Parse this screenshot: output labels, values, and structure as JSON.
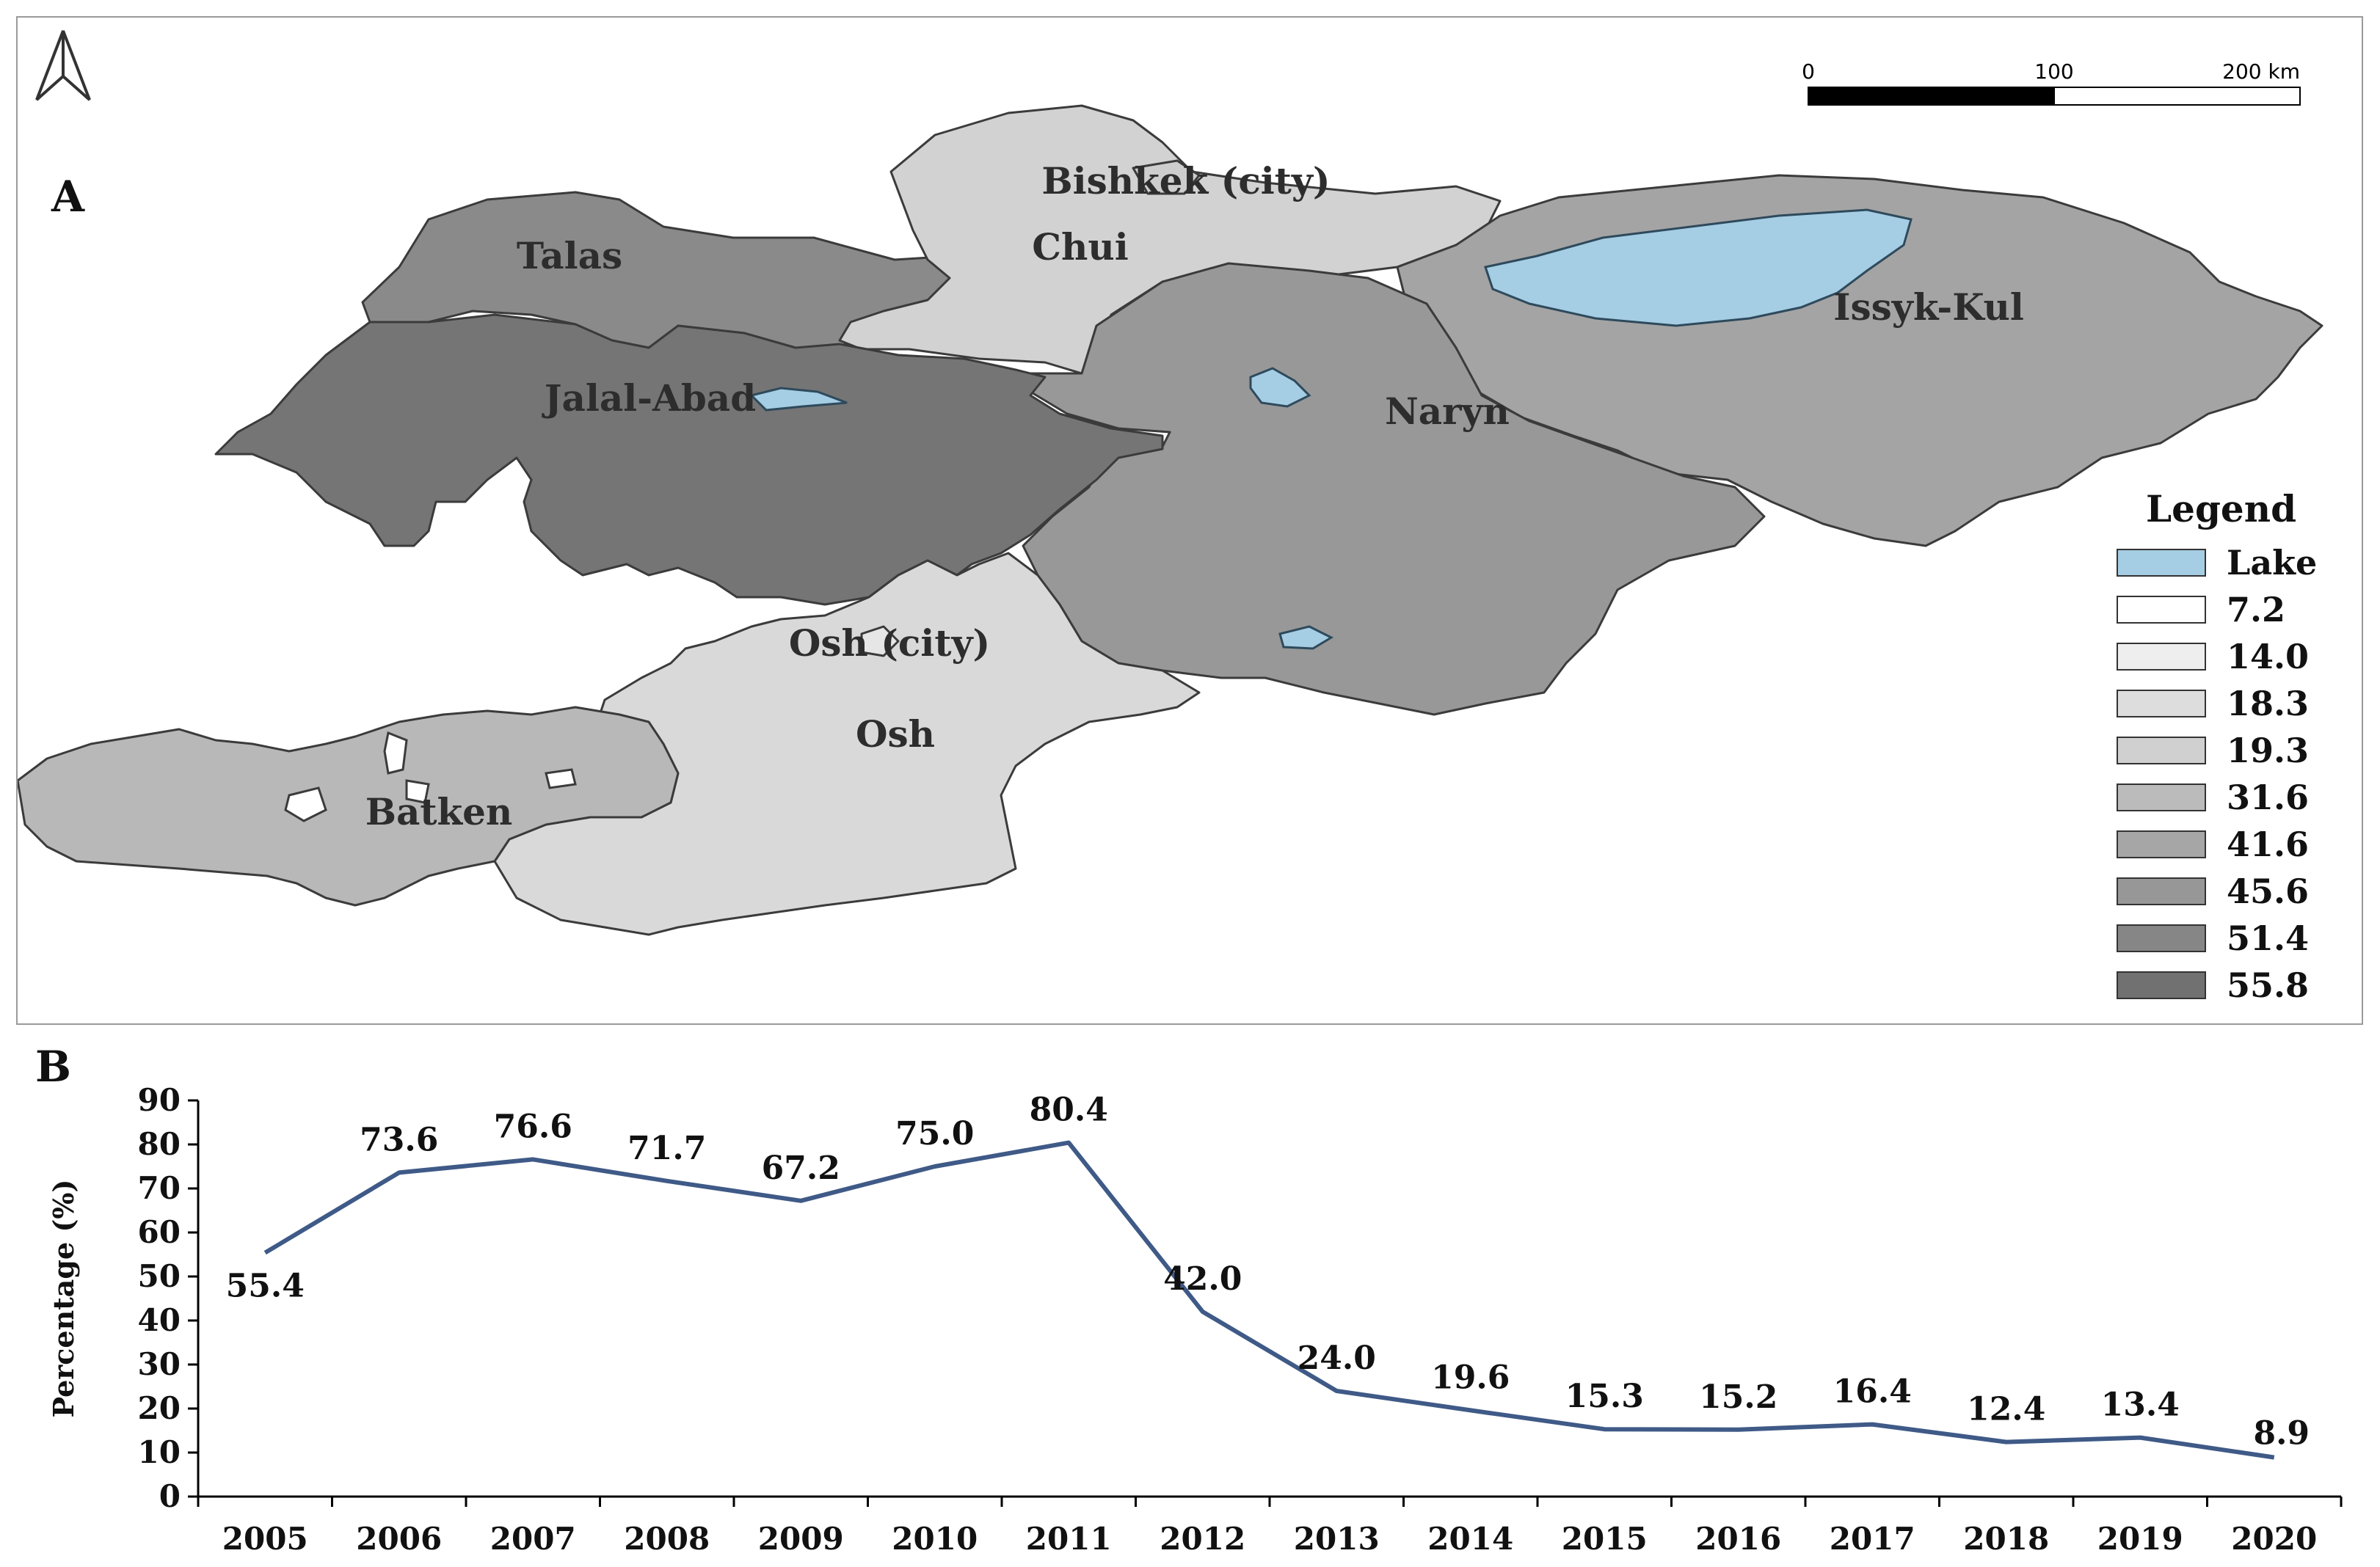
{
  "panel_a": {
    "letter": "A",
    "scale_bar": {
      "labels": [
        "0",
        "100",
        "200 km"
      ]
    },
    "north_arrow_icon": "north-arrow-icon",
    "regions": [
      {
        "name": "Talas",
        "value": "51.4",
        "color": "#8a8a8a"
      },
      {
        "name": "Chui",
        "value": "18.3",
        "color": "#d2d2d2"
      },
      {
        "name": "Bishkek (city)",
        "value": "19.3",
        "color": "#cdcdcd"
      },
      {
        "name": "Issyk-Kul",
        "value": "41.6",
        "color": "#a4a4a4"
      },
      {
        "name": "Naryn",
        "value": "45.6",
        "color": "#989898"
      },
      {
        "name": "Jalal-Abad",
        "value": "55.8",
        "color": "#757575"
      },
      {
        "name": "Osh (city)",
        "value": "14.0",
        "color": "#e6e6e6"
      },
      {
        "name": "Osh",
        "value": "18.3",
        "color": "#d9d9d9"
      },
      {
        "name": "Batken",
        "value": "31.6",
        "color": "#b8b8b8"
      }
    ],
    "legend": {
      "title": "Legend",
      "items": [
        {
          "label": "Lake",
          "color": "#a5cde3"
        },
        {
          "label": "7.2",
          "color": "#ffffff"
        },
        {
          "label": "14.0",
          "color": "#eeeeee"
        },
        {
          "label": "18.3",
          "color": "#dddddd"
        },
        {
          "label": "19.3",
          "color": "#d0d0d0"
        },
        {
          "label": "31.6",
          "color": "#bbbbbb"
        },
        {
          "label": "41.6",
          "color": "#a6a6a6"
        },
        {
          "label": "45.6",
          "color": "#979797"
        },
        {
          "label": "51.4",
          "color": "#868686"
        },
        {
          "label": "55.8",
          "color": "#717171"
        }
      ]
    }
  },
  "panel_b": {
    "letter": "B"
  },
  "chart_data": {
    "type": "line",
    "title": "",
    "xlabel": "",
    "ylabel": "Percentage (%)",
    "categories": [
      "2005",
      "2006",
      "2007",
      "2008",
      "2009",
      "2010",
      "2011",
      "2012",
      "2013",
      "2014",
      "2015",
      "2016",
      "2017",
      "2018",
      "2019",
      "2020"
    ],
    "series": [
      {
        "values": [
          55.4,
          73.6,
          76.6,
          71.7,
          67.2,
          75.0,
          80.4,
          42.0,
          24.0,
          19.6,
          15.3,
          15.2,
          16.4,
          12.4,
          13.4,
          8.9
        ]
      }
    ],
    "data_labels": [
      "55.4",
      "73.6",
      "76.6",
      "71.7",
      "67.2",
      "75.0",
      "80.4",
      "42.0",
      "24.0",
      "19.6",
      "15.3",
      "15.2",
      "16.4",
      "12.4",
      "13.4",
      "8.9"
    ],
    "ylim": [
      0,
      90
    ],
    "yticks": [
      "0",
      "10",
      "20",
      "30",
      "40",
      "50",
      "60",
      "70",
      "80",
      "90"
    ],
    "line_color": "#3f5a87",
    "grid": false,
    "legend": "none"
  }
}
